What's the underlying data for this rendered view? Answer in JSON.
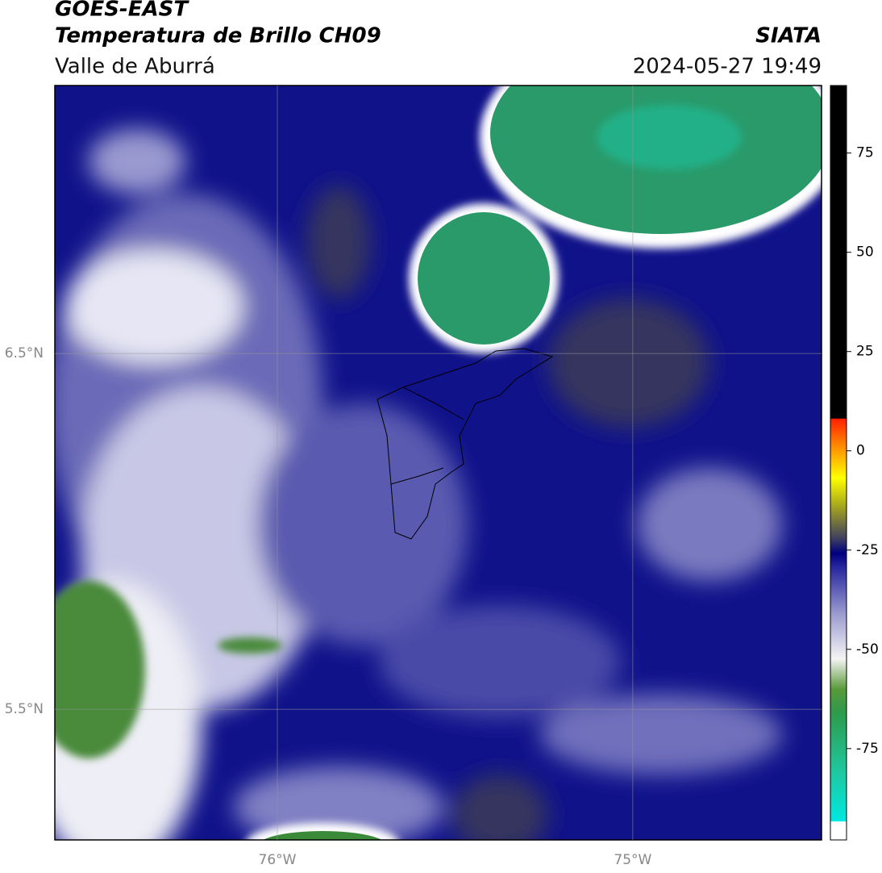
{
  "header": {
    "title": "GOES-EAST",
    "product": "Temperatura de Brillo CH09",
    "region": "Valle de Aburrá",
    "source": "SIATA",
    "datetime": "2024-05-27 19:49"
  },
  "map": {
    "xlim": [
      -76.626,
      -74.469
    ],
    "ylim": [
      5.133,
      7.253
    ],
    "xticks": [
      {
        "value": -76,
        "label": "76°W"
      },
      {
        "value": -75,
        "label": "75°W"
      }
    ],
    "yticks": [
      {
        "value": 6.5,
        "label": "6.5°N"
      },
      {
        "value": 5.5,
        "label": "5.5°N"
      }
    ]
  },
  "colorbar": {
    "lim": [
      -98,
      92
    ],
    "ticks": [
      75,
      50,
      25,
      0,
      -25,
      -50,
      -75
    ]
  }
}
